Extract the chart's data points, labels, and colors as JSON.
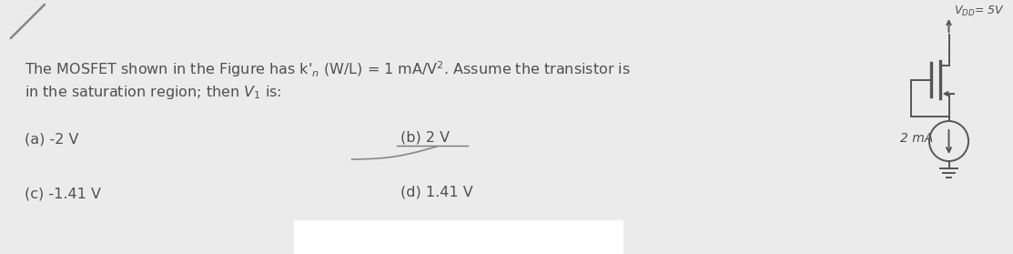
{
  "bg_color": "#ebebeb",
  "text_color": "#505050",
  "title_line1": "The MOSFET shown in the Figure has k'_n (W/L) = 1 mA/V². Assume the transistor is",
  "title_line2": "in the saturation region; then V_1 is:",
  "option_a": "(a) -2 V",
  "option_b": "(b) 2 V",
  "option_c": "(c) -1.41 V",
  "option_d": "(d) 1.41 V",
  "vdd_label_top": "V",
  "vdd_sub": "DD",
  "vdd_label_bot": "= 5V",
  "current_label": "2 mA",
  "font_size_main": 11.5,
  "font_size_options": 11.5
}
